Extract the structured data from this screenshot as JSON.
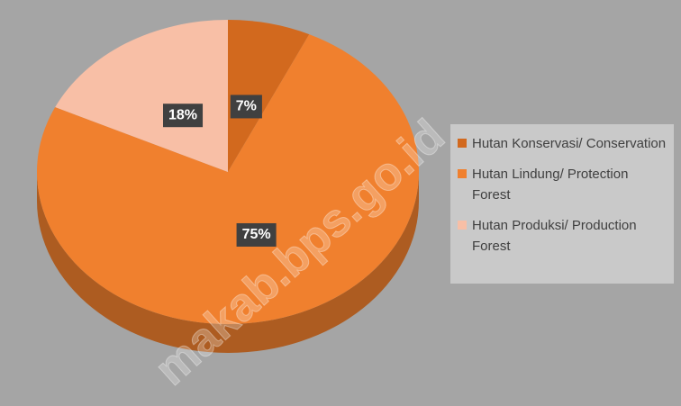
{
  "chart_data": {
    "type": "pie",
    "categories": [
      "Hutan Konservasi/ Conservation",
      "Hutan Lindung/ Protection Forest",
      "Hutan Produksi/ Production Forest"
    ],
    "values": [
      7,
      75,
      18
    ],
    "value_labels": [
      "7%",
      "75%",
      "18%"
    ],
    "colors": [
      "#d2691e",
      "#f0802e",
      "#f8bfa6"
    ],
    "legend": "right",
    "watermark": "makab.bps.go.id"
  }
}
